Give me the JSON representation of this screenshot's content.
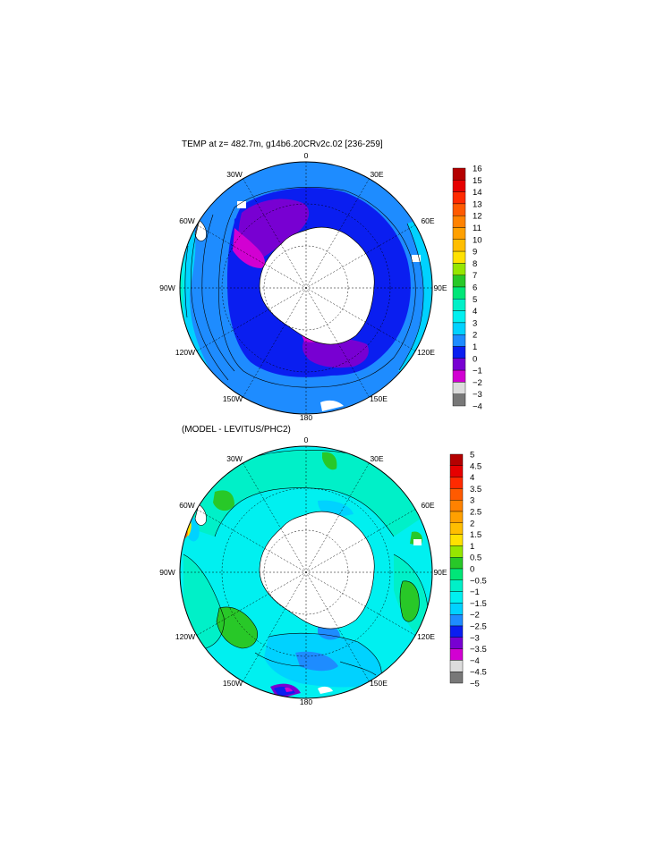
{
  "panels": [
    {
      "title": "TEMP at z= 482.7m, g14b6.20CRv2c.02 [236-259]",
      "lon_labels": [
        "0",
        "30E",
        "60E",
        "90E",
        "120E",
        "150E",
        "180",
        "150W",
        "120W",
        "90W",
        "60W",
        "30W"
      ],
      "colorbar": {
        "labels": [
          "16",
          "15",
          "14",
          "13",
          "12",
          "11",
          "10",
          "9",
          "8",
          "7",
          "6",
          "5",
          "4",
          "3",
          "2",
          "1",
          "0",
          "−1",
          "−2",
          "−3",
          "−4"
        ],
        "colors": [
          "#b40000",
          "#e60000",
          "#ff2a00",
          "#ff5a00",
          "#ff8200",
          "#ffa000",
          "#ffbe00",
          "#ffe100",
          "#96e600",
          "#28c828",
          "#00e678",
          "#00f0c8",
          "#00f0f0",
          "#00d2ff",
          "#1e8cff",
          "#0a1ef0",
          "#7800d2",
          "#d200d2",
          "#dcdcdc",
          "#787878"
        ]
      }
    },
    {
      "title": "(MODEL - LEVITUS/PHC2)",
      "lon_labels": [
        "0",
        "30E",
        "60E",
        "90E",
        "120E",
        "150E",
        "180",
        "150W",
        "120W",
        "90W",
        "60W",
        "30W"
      ],
      "colorbar": {
        "labels": [
          "5",
          "4.5",
          "4",
          "3.5",
          "3",
          "2.5",
          "2",
          "1.5",
          "1",
          "0.5",
          "0",
          "−0.5",
          "−1",
          "−1.5",
          "−2",
          "−2.5",
          "−3",
          "−3.5",
          "−4",
          "−4.5",
          "−5"
        ],
        "colors": [
          "#b40000",
          "#e60000",
          "#ff2a00",
          "#ff5a00",
          "#ff8200",
          "#ffa000",
          "#ffbe00",
          "#ffe100",
          "#96e600",
          "#28c828",
          "#00e678",
          "#00f0c8",
          "#00f0f0",
          "#00d2ff",
          "#1e8cff",
          "#0a1ef0",
          "#7800d2",
          "#d200d2",
          "#dcdcdc",
          "#787878"
        ]
      }
    }
  ]
}
